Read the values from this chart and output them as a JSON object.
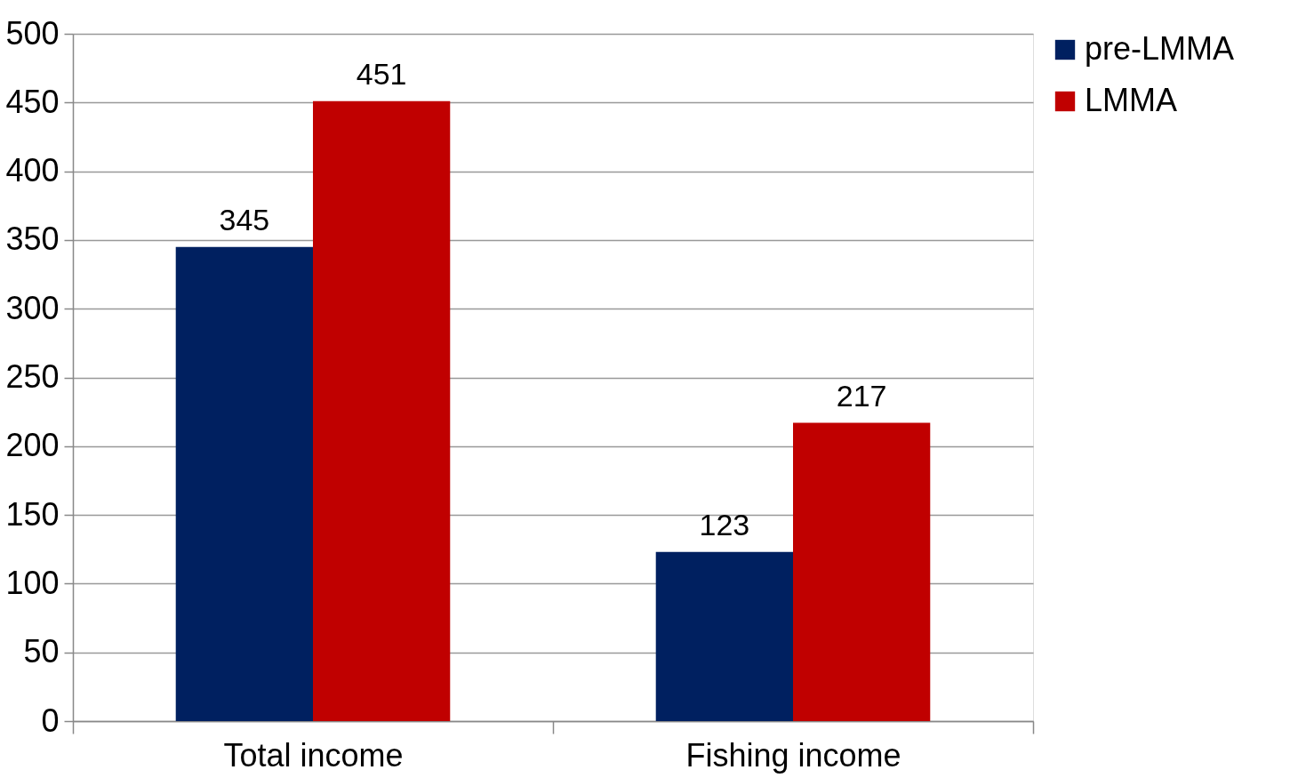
{
  "chart_data": {
    "type": "bar",
    "categories": [
      "Total income",
      "Fishing income"
    ],
    "series": [
      {
        "name": "pre-LMMA",
        "color": "#002060",
        "values": [
          345,
          123
        ]
      },
      {
        "name": "LMMA",
        "color": "#c00000",
        "values": [
          451,
          217
        ]
      }
    ],
    "ylim": [
      0,
      500
    ],
    "yticks": [
      0,
      50,
      100,
      150,
      200,
      250,
      300,
      350,
      400,
      450,
      500
    ],
    "grid": "y",
    "legend": "right",
    "data_labels": true
  }
}
